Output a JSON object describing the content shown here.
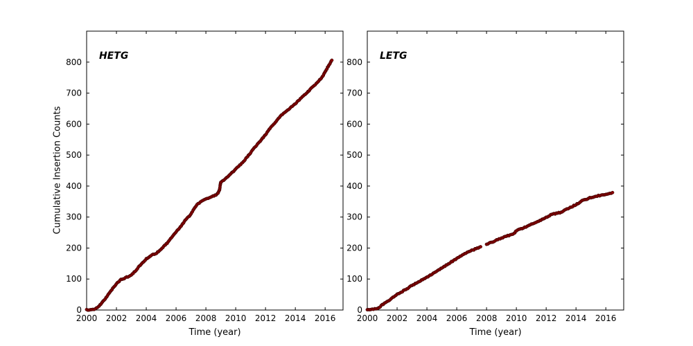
{
  "figure": {
    "background": "#ffffff",
    "axis_color": "#000000",
    "marker_color": "#8b0000",
    "marker_edge_color": "#250000",
    "marker_radius": 2.2
  },
  "chart_data": [
    {
      "type": "scatter",
      "title": "HETG",
      "xlabel": "Time (year)",
      "ylabel": "Cumulative Insertion Counts",
      "xlim": [
        2000,
        2017.2
      ],
      "ylim": [
        0,
        900
      ],
      "xticks": [
        2000,
        2002,
        2004,
        2006,
        2008,
        2010,
        2012,
        2014,
        2016
      ],
      "yticks": [
        0,
        100,
        200,
        300,
        400,
        500,
        600,
        700,
        800
      ],
      "grid": false,
      "legend": "none",
      "points": [
        [
          2000.0,
          0
        ],
        [
          2000.5,
          3
        ],
        [
          2000.8,
          10
        ],
        [
          2001.0,
          22
        ],
        [
          2001.3,
          40
        ],
        [
          2001.6,
          60
        ],
        [
          2002.0,
          85
        ],
        [
          2002.3,
          98
        ],
        [
          2002.6,
          104
        ],
        [
          2003.0,
          113
        ],
        [
          2003.3,
          128
        ],
        [
          2003.6,
          145
        ],
        [
          2004.0,
          165
        ],
        [
          2004.3,
          176
        ],
        [
          2004.7,
          184
        ],
        [
          2005.0,
          196
        ],
        [
          2005.4,
          216
        ],
        [
          2005.8,
          240
        ],
        [
          2006.0,
          252
        ],
        [
          2006.4,
          275
        ],
        [
          2006.7,
          295
        ],
        [
          2006.9,
          303
        ],
        [
          2007.1,
          318
        ],
        [
          2007.4,
          340
        ],
        [
          2007.7,
          350
        ],
        [
          2008.0,
          358
        ],
        [
          2008.4,
          366
        ],
        [
          2008.75,
          373
        ],
        [
          2008.9,
          385
        ],
        [
          2009.0,
          412
        ],
        [
          2009.2,
          420
        ],
        [
          2009.5,
          432
        ],
        [
          2009.8,
          445
        ],
        [
          2010.0,
          455
        ],
        [
          2010.4,
          473
        ],
        [
          2010.8,
          495
        ],
        [
          2011.0,
          508
        ],
        [
          2011.4,
          532
        ],
        [
          2011.7,
          548
        ],
        [
          2012.0,
          566
        ],
        [
          2012.3,
          586
        ],
        [
          2012.6,
          603
        ],
        [
          2013.0,
          626
        ],
        [
          2013.4,
          641
        ],
        [
          2013.8,
          658
        ],
        [
          2014.0,
          666
        ],
        [
          2014.4,
          684
        ],
        [
          2014.8,
          702
        ],
        [
          2015.0,
          712
        ],
        [
          2015.4,
          730
        ],
        [
          2015.8,
          752
        ],
        [
          2016.0,
          768
        ],
        [
          2016.2,
          786
        ],
        [
          2016.45,
          806
        ]
      ],
      "gaps": []
    },
    {
      "type": "scatter",
      "title": "LETG",
      "xlabel": "Time (year)",
      "ylabel": "",
      "xlim": [
        2000,
        2017.2
      ],
      "ylim": [
        0,
        900
      ],
      "xticks": [
        2000,
        2002,
        2004,
        2006,
        2008,
        2010,
        2012,
        2014,
        2016
      ],
      "yticks": [
        0,
        100,
        200,
        300,
        400,
        500,
        600,
        700,
        800
      ],
      "grid": false,
      "legend": "none",
      "points": [
        [
          2000.0,
          0
        ],
        [
          2000.5,
          3
        ],
        [
          2000.8,
          8
        ],
        [
          2001.0,
          17
        ],
        [
          2001.5,
          33
        ],
        [
          2002.0,
          50
        ],
        [
          2002.5,
          64
        ],
        [
          2003.0,
          79
        ],
        [
          2003.5,
          93
        ],
        [
          2004.0,
          106
        ],
        [
          2004.5,
          121
        ],
        [
          2005.0,
          136
        ],
        [
          2005.5,
          151
        ],
        [
          2006.0,
          166
        ],
        [
          2006.3,
          175
        ],
        [
          2006.7,
          185
        ],
        [
          2007.0,
          192
        ],
        [
          2007.3,
          198
        ],
        [
          2007.6,
          204
        ],
        [
          2008.0,
          212
        ],
        [
          2008.5,
          222
        ],
        [
          2009.0,
          232
        ],
        [
          2009.5,
          241
        ],
        [
          2009.85,
          247
        ],
        [
          2010.0,
          256
        ],
        [
          2010.4,
          264
        ],
        [
          2010.8,
          271
        ],
        [
          2011.0,
          276
        ],
        [
          2011.5,
          287
        ],
        [
          2012.0,
          299
        ],
        [
          2012.3,
          307
        ],
        [
          2012.6,
          311
        ],
        [
          2013.0,
          315
        ],
        [
          2013.3,
          324
        ],
        [
          2013.7,
          333
        ],
        [
          2014.0,
          340
        ],
        [
          2014.4,
          352
        ],
        [
          2014.8,
          359
        ],
        [
          2015.0,
          363
        ],
        [
          2015.5,
          369
        ],
        [
          2016.0,
          374
        ],
        [
          2016.45,
          379
        ]
      ],
      "gaps": [
        [
          2007.62,
          2007.98
        ]
      ]
    }
  ]
}
